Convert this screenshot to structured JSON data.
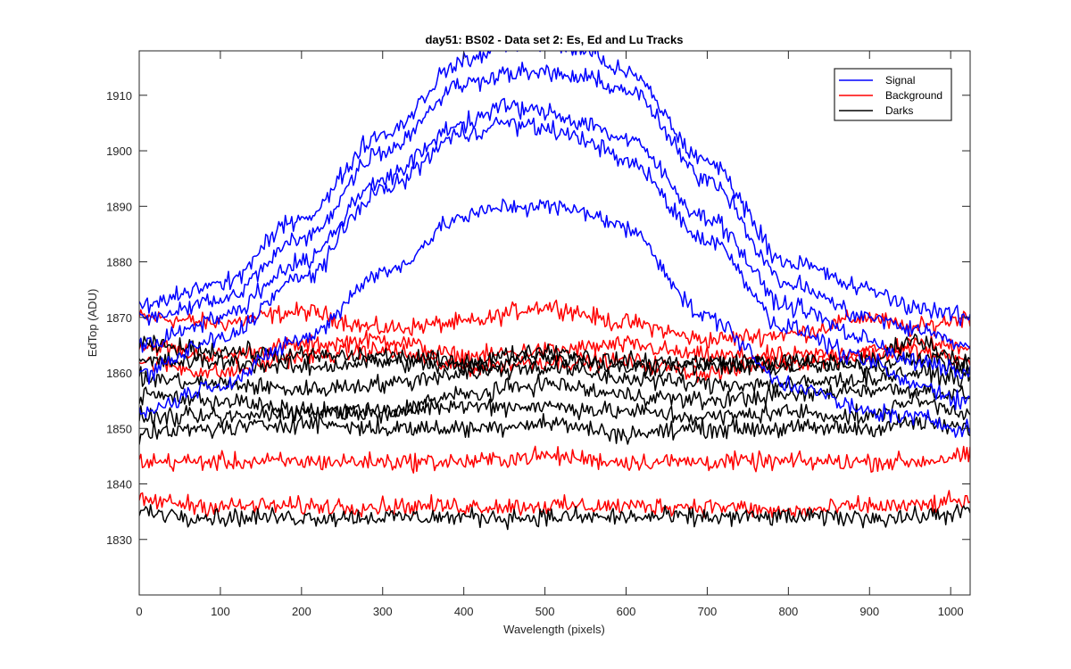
{
  "chart_data": {
    "type": "line",
    "title": "day51: BS02 - Data set 2: Es, Ed and Lu Tracks",
    "xlabel": "Wavelength (pixels)",
    "ylabel": "EdTop (ADU)",
    "xlim": [
      0,
      1024
    ],
    "ylim": [
      1820,
      1918
    ],
    "xticks": [
      0,
      100,
      200,
      300,
      400,
      500,
      600,
      700,
      800,
      900,
      1000
    ],
    "xtick_labels": [
      "0",
      "100",
      "200",
      "300",
      "400",
      "500",
      "600",
      "700",
      "800",
      "900",
      "1000"
    ],
    "yticks": [
      1830,
      1840,
      1850,
      1860,
      1870,
      1880,
      1890,
      1900,
      1910
    ],
    "ytick_labels": [
      "1830",
      "1840",
      "1850",
      "1860",
      "1870",
      "1880",
      "1890",
      "1900",
      "1910"
    ],
    "grid": false,
    "legend_position": "top-right",
    "legend": [
      {
        "label": "Signal",
        "color": "#0000ff"
      },
      {
        "label": "Background",
        "color": "#ff0000"
      },
      {
        "label": "Darks",
        "color": "#000000"
      }
    ],
    "series": [
      {
        "group": "Signal",
        "color": "#0000ff",
        "x": [
          0,
          100,
          200,
          300,
          400,
          450,
          500,
          550,
          600,
          700,
          800,
          900,
          950,
          1024
        ],
        "values": [
          1872,
          1876,
          1888,
          1903,
          1916,
          1919,
          1919,
          1918,
          1914,
          1898,
          1880,
          1875,
          1872,
          1870
        ]
      },
      {
        "group": "Signal",
        "color": "#0000ff",
        "x": [
          0,
          100,
          200,
          300,
          400,
          450,
          500,
          550,
          600,
          700,
          800,
          900,
          950,
          1024
        ],
        "values": [
          1870,
          1873,
          1884,
          1900,
          1912,
          1914,
          1914,
          1913,
          1911,
          1895,
          1876,
          1870,
          1868,
          1865
        ]
      },
      {
        "group": "Signal",
        "color": "#0000ff",
        "x": [
          0,
          100,
          200,
          300,
          400,
          450,
          500,
          550,
          600,
          700,
          800,
          900,
          950,
          1024
        ],
        "values": [
          1865,
          1870,
          1880,
          1895,
          1905,
          1908,
          1907,
          1905,
          1902,
          1888,
          1872,
          1866,
          1862,
          1860
        ]
      },
      {
        "group": "Signal",
        "color": "#0000ff",
        "x": [
          0,
          100,
          200,
          300,
          400,
          450,
          500,
          550,
          600,
          700,
          800,
          900,
          950,
          1024
        ],
        "values": [
          1860,
          1866,
          1877,
          1893,
          1903,
          1905,
          1904,
          1902,
          1898,
          1884,
          1868,
          1862,
          1858,
          1855
        ]
      },
      {
        "group": "Signal",
        "color": "#0000ff",
        "x": [
          0,
          100,
          200,
          300,
          400,
          450,
          500,
          550,
          600,
          700,
          800,
          900,
          950,
          1024
        ],
        "values": [
          1853,
          1858,
          1866,
          1878,
          1888,
          1890,
          1890,
          1889,
          1886,
          1870,
          1858,
          1853,
          1852,
          1850
        ]
      },
      {
        "group": "Background",
        "color": "#ff0000",
        "x": [
          0,
          100,
          200,
          300,
          400,
          500,
          600,
          700,
          800,
          900,
          950,
          1024
        ],
        "values": [
          1870,
          1869,
          1871,
          1868,
          1869,
          1872,
          1869,
          1866,
          1867,
          1870,
          1868,
          1870
        ]
      },
      {
        "group": "Background",
        "color": "#ff0000",
        "x": [
          0,
          100,
          200,
          300,
          400,
          500,
          600,
          700,
          800,
          900,
          950,
          1024
        ],
        "values": [
          1865,
          1863,
          1865,
          1866,
          1863,
          1864,
          1865,
          1863,
          1863,
          1864,
          1865,
          1865
        ]
      },
      {
        "group": "Background",
        "color": "#ff0000",
        "x": [
          0,
          100,
          200,
          300,
          400,
          500,
          600,
          700,
          800,
          900,
          950,
          1024
        ],
        "values": [
          1862,
          1860,
          1863,
          1864,
          1861,
          1862,
          1862,
          1860,
          1862,
          1863,
          1864,
          1862
        ]
      },
      {
        "group": "Background",
        "color": "#ff0000",
        "x": [
          0,
          100,
          200,
          300,
          400,
          500,
          600,
          700,
          800,
          900,
          950,
          1024
        ],
        "values": [
          1844,
          1844,
          1844,
          1844,
          1844,
          1845,
          1844,
          1844,
          1844,
          1844,
          1844,
          1845
        ]
      },
      {
        "group": "Background",
        "color": "#ff0000",
        "x": [
          0,
          100,
          200,
          300,
          400,
          500,
          600,
          700,
          800,
          900,
          950,
          1024
        ],
        "values": [
          1837,
          1836,
          1836,
          1836,
          1836,
          1836,
          1836,
          1836,
          1835,
          1836,
          1836,
          1837
        ]
      },
      {
        "group": "Darks",
        "color": "#000000",
        "x": [
          0,
          100,
          200,
          300,
          400,
          500,
          600,
          700,
          800,
          900,
          950,
          1024
        ],
        "values": [
          1865,
          1864,
          1863,
          1863,
          1862,
          1864,
          1862,
          1862,
          1862,
          1862,
          1866,
          1862
        ]
      },
      {
        "group": "Darks",
        "color": "#000000",
        "x": [
          0,
          100,
          200,
          300,
          400,
          500,
          600,
          700,
          800,
          900,
          950,
          1024
        ],
        "values": [
          1862,
          1862,
          1861,
          1862,
          1861,
          1863,
          1861,
          1861,
          1861,
          1861,
          1863,
          1861
        ]
      },
      {
        "group": "Darks",
        "color": "#000000",
        "x": [
          0,
          100,
          200,
          300,
          400,
          500,
          600,
          700,
          800,
          900,
          950,
          1024
        ],
        "values": [
          1859,
          1858,
          1857,
          1858,
          1860,
          1861,
          1859,
          1858,
          1858,
          1859,
          1860,
          1859
        ]
      },
      {
        "group": "Darks",
        "color": "#000000",
        "x": [
          0,
          100,
          200,
          300,
          400,
          500,
          600,
          700,
          800,
          900,
          950,
          1024
        ],
        "values": [
          1856,
          1855,
          1853,
          1853,
          1856,
          1858,
          1856,
          1855,
          1856,
          1857,
          1857,
          1856
        ]
      },
      {
        "group": "Darks",
        "color": "#000000",
        "x": [
          0,
          100,
          200,
          300,
          400,
          500,
          600,
          700,
          800,
          900,
          950,
          1024
        ],
        "values": [
          1852,
          1852,
          1853,
          1853,
          1854,
          1854,
          1853,
          1852,
          1853,
          1852,
          1855,
          1853
        ]
      },
      {
        "group": "Darks",
        "color": "#000000",
        "x": [
          0,
          100,
          200,
          300,
          400,
          500,
          600,
          700,
          800,
          900,
          950,
          1024
        ],
        "values": [
          1849,
          1850,
          1851,
          1850,
          1850,
          1851,
          1849,
          1850,
          1850,
          1850,
          1851,
          1850
        ]
      },
      {
        "group": "Darks",
        "color": "#000000",
        "x": [
          0,
          100,
          200,
          300,
          400,
          500,
          600,
          700,
          800,
          900,
          950,
          1024
        ],
        "values": [
          1835,
          1834,
          1834,
          1834,
          1834,
          1834,
          1834,
          1834,
          1834,
          1834,
          1834,
          1835
        ]
      }
    ]
  }
}
